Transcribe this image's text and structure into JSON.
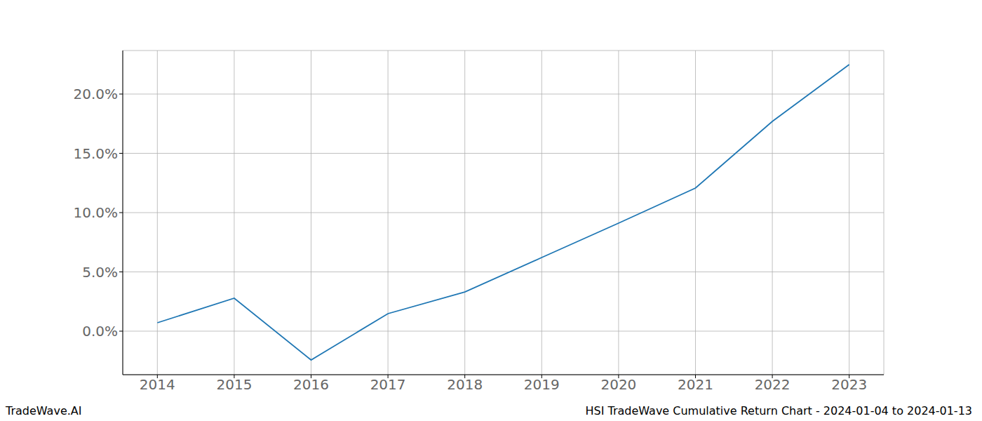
{
  "chart_data": {
    "type": "line",
    "title": "HSI TradeWave Cumulative Return Chart - 2024-01-04 to 2024-01-13",
    "watermark": "TradeWave.AI",
    "x": [
      2014,
      2015,
      2016,
      2017,
      2018,
      2019,
      2020,
      2021,
      2022,
      2023
    ],
    "values": [
      0.71,
      2.78,
      -2.43,
      1.48,
      3.31,
      6.21,
      9.11,
      12.07,
      17.69,
      22.49
    ],
    "color": "#1f77b4",
    "xlim": [
      2013.55,
      2023.45
    ],
    "xticks": [
      2014,
      2015,
      2016,
      2017,
      2018,
      2019,
      2020,
      2021,
      2022,
      2023
    ],
    "ylim": [
      -3.67,
      23.67
    ],
    "yticks": [
      {
        "value": 0,
        "label": "0.0%"
      },
      {
        "value": 5,
        "label": "5.0%"
      },
      {
        "value": 10,
        "label": "10.0%"
      },
      {
        "value": 15,
        "label": "15.0%"
      },
      {
        "value": 20,
        "label": "20.0%"
      }
    ],
    "grid": true
  }
}
